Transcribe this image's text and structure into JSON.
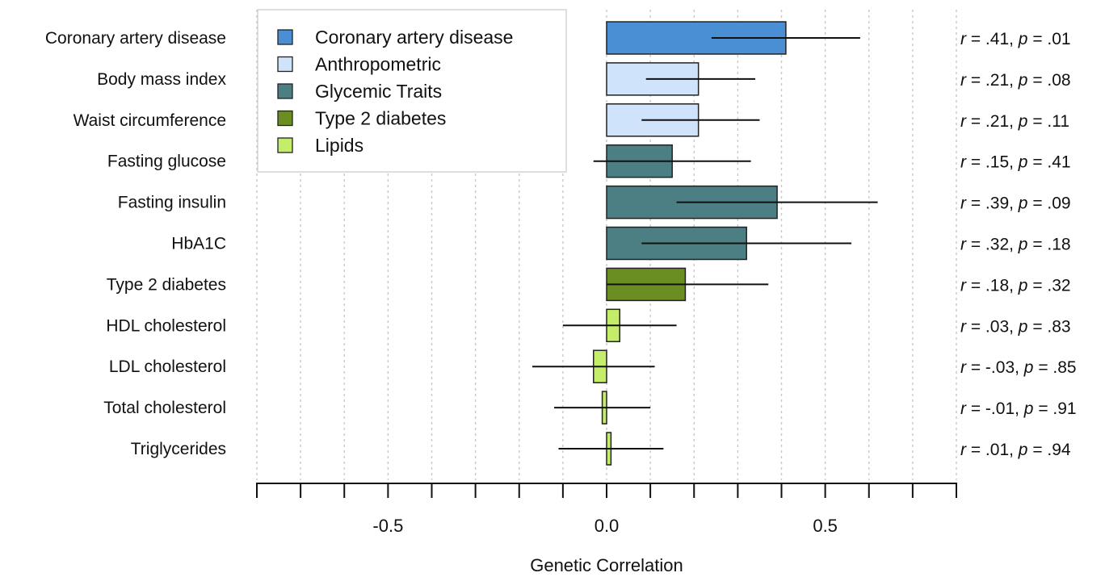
{
  "chart_data": {
    "type": "bar",
    "orientation": "horizontal",
    "xlabel": "Genetic Correlation",
    "xlim": [
      -0.8,
      0.8
    ],
    "ticks": [
      {
        "value": -0.5,
        "label": "-0.5"
      },
      {
        "value": 0.0,
        "label": "0.0"
      },
      {
        "value": 0.5,
        "label": "0.5"
      }
    ],
    "minor_ticks": [
      -0.8,
      -0.7,
      -0.6,
      -0.4,
      -0.3,
      -0.2,
      -0.1,
      0.1,
      0.2,
      0.3,
      0.4,
      0.6,
      0.7,
      0.8
    ],
    "grid": "vertical dotted",
    "legend_position": "top-left",
    "legend": [
      {
        "name": "Coronary artery disease",
        "color": "#4a8fd3"
      },
      {
        "name": "Anthropometric",
        "color": "#cfe3fb"
      },
      {
        "name": "Glycemic Traits",
        "color": "#4b7f84"
      },
      {
        "name": "Type 2 diabetes",
        "color": "#6b8e23"
      },
      {
        "name": "Lipids",
        "color": "#c4ee6a"
      }
    ],
    "rows": [
      {
        "label": "Coronary artery disease",
        "group": "Coronary artery disease",
        "r": 0.41,
        "ci": [
          0.24,
          0.58
        ],
        "stat": {
          "r": ".41",
          "p": ".01"
        }
      },
      {
        "label": "Body mass index",
        "group": "Anthropometric",
        "r": 0.21,
        "ci": [
          0.09,
          0.34
        ],
        "stat": {
          "r": ".21",
          "p": ".08"
        }
      },
      {
        "label": "Waist circumference",
        "group": "Anthropometric",
        "r": 0.21,
        "ci": [
          0.08,
          0.35
        ],
        "stat": {
          "r": ".21",
          "p": ".11"
        }
      },
      {
        "label": "Fasting glucose",
        "group": "Glycemic Traits",
        "r": 0.15,
        "ci": [
          -0.03,
          0.33
        ],
        "stat": {
          "r": ".15",
          "p": ".41"
        }
      },
      {
        "label": "Fasting insulin",
        "group": "Glycemic Traits",
        "r": 0.39,
        "ci": [
          0.16,
          0.62
        ],
        "stat": {
          "r": ".39",
          "p": ".09"
        }
      },
      {
        "label": "HbA1C",
        "group": "Glycemic Traits",
        "r": 0.32,
        "ci": [
          0.08,
          0.56
        ],
        "stat": {
          "r": ".32",
          "p": ".18"
        }
      },
      {
        "label": "Type 2 diabetes",
        "group": "Type 2 diabetes",
        "r": 0.18,
        "ci": [
          0.0,
          0.37
        ],
        "stat": {
          "r": ".18",
          "p": ".32"
        }
      },
      {
        "label": "HDL cholesterol",
        "group": "Lipids",
        "r": 0.03,
        "ci": [
          -0.1,
          0.16
        ],
        "stat": {
          "r": ".03",
          "p": ".83"
        }
      },
      {
        "label": "LDL cholesterol",
        "group": "Lipids",
        "r": -0.03,
        "ci": [
          -0.17,
          0.11
        ],
        "stat": {
          "r": "-.03",
          "p": ".85"
        }
      },
      {
        "label": "Total cholesterol",
        "group": "Lipids",
        "r": -0.01,
        "ci": [
          -0.12,
          0.1
        ],
        "stat": {
          "r": "-.01",
          "p": ".91"
        }
      },
      {
        "label": "Triglycerides",
        "group": "Lipids",
        "r": 0.01,
        "ci": [
          -0.11,
          0.13
        ],
        "stat": {
          "r": ".01",
          "p": ".94"
        }
      }
    ]
  }
}
